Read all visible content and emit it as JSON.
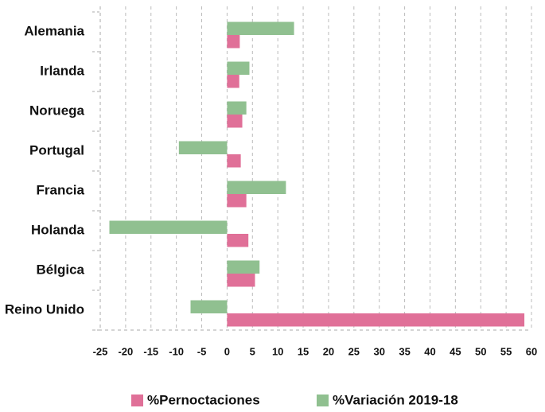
{
  "chart_data": {
    "type": "bar",
    "orientation": "horizontal",
    "categories": [
      "Alemania",
      "Irlanda",
      "Noruega",
      "Portugal",
      "Francia",
      "Holanda",
      "Bélgica",
      "Reino Unido"
    ],
    "series": [
      {
        "name": "%Pernoctaciones",
        "color": "#e07098",
        "values": [
          2.5,
          2.4,
          3.0,
          2.7,
          3.8,
          4.2,
          5.5,
          58.6
        ]
      },
      {
        "name": "%Variación 2019-18",
        "color": "#90c090",
        "values": [
          13.2,
          4.4,
          3.8,
          -9.5,
          11.6,
          -23.2,
          6.4,
          -7.2
        ]
      }
    ],
    "xlim": [
      -25,
      60
    ],
    "xticks": [
      -25,
      -20,
      -15,
      -10,
      -5,
      0,
      5,
      10,
      15,
      20,
      25,
      30,
      35,
      40,
      45,
      50,
      55,
      60
    ],
    "grid": true,
    "legend": "bottom"
  }
}
